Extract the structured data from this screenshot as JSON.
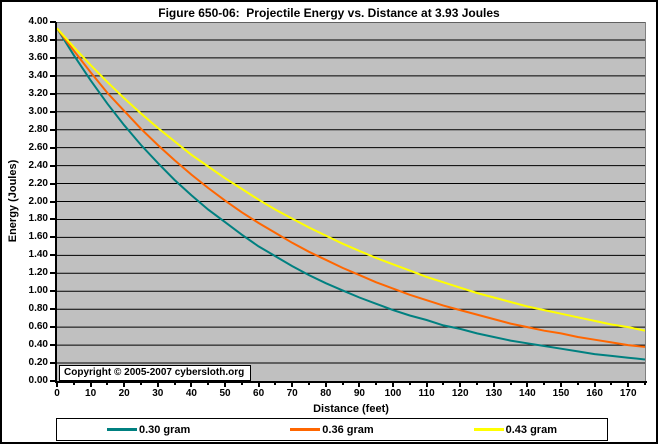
{
  "chart": {
    "title": "Figure 650-06:  Projectile Energy vs. Distance at 3.93 Joules",
    "copyright": "Copyright © 2005-2007 cybersloth.org",
    "plot_background": "#C0C0C0",
    "gridline_color": "#000000",
    "y_axis": {
      "label": "Energy (Joules)",
      "tick_labels": [
        "4.00",
        "3.80",
        "3.60",
        "3.40",
        "3.20",
        "3.00",
        "2.80",
        "2.60",
        "2.40",
        "2.20",
        "2.00",
        "1.80",
        "1.60",
        "1.40",
        "1.20",
        "1.00",
        "0.80",
        "0.60",
        "0.40",
        "0.20",
        "0.00"
      ],
      "tick_step": 0.2,
      "min": 0.0,
      "max": 4.0
    },
    "x_axis": {
      "label": "Distance (feet)",
      "tick_labels": [
        "0",
        "10",
        "20",
        "30",
        "40",
        "50",
        "60",
        "70",
        "80",
        "90",
        "100",
        "110",
        "120",
        "130",
        "140",
        "150",
        "160",
        "170"
      ],
      "major_tick_step": 10,
      "minor_tick_step": 5,
      "min": 0,
      "max": 175
    },
    "legend": [
      {
        "label": "0.30 gram",
        "color": "#008080"
      },
      {
        "label": "0.36 gram",
        "color": "#FF6600"
      },
      {
        "label": "0.43 gram",
        "color": "#FFFF00"
      }
    ]
  },
  "chart_data": {
    "type": "line",
    "title": "Figure 650-06:  Projectile Energy vs. Distance at 3.93 Joules",
    "xlabel": "Distance (feet)",
    "ylabel": "Energy (Joules)",
    "xlim": [
      0,
      175
    ],
    "ylim": [
      0.0,
      4.0
    ],
    "grid": "horizontal",
    "legend_position": "bottom",
    "x": [
      0,
      5,
      10,
      15,
      20,
      25,
      30,
      35,
      40,
      45,
      50,
      55,
      60,
      65,
      70,
      75,
      80,
      85,
      90,
      95,
      100,
      105,
      110,
      115,
      120,
      125,
      130,
      135,
      140,
      145,
      150,
      155,
      160,
      165,
      170,
      175
    ],
    "series": [
      {
        "name": "0.30 gram",
        "color": "#008080",
        "values": [
          3.93,
          3.63,
          3.35,
          3.09,
          2.85,
          2.63,
          2.43,
          2.24,
          2.07,
          1.91,
          1.77,
          1.63,
          1.5,
          1.39,
          1.28,
          1.18,
          1.09,
          1.01,
          0.93,
          0.86,
          0.79,
          0.73,
          0.68,
          0.62,
          0.58,
          0.53,
          0.49,
          0.45,
          0.42,
          0.39,
          0.36,
          0.33,
          0.3,
          0.28,
          0.26,
          0.24
        ]
      },
      {
        "name": "0.36 gram",
        "color": "#FF6600",
        "values": [
          3.93,
          3.68,
          3.44,
          3.21,
          3.01,
          2.81,
          2.63,
          2.46,
          2.3,
          2.15,
          2.01,
          1.88,
          1.76,
          1.65,
          1.54,
          1.44,
          1.35,
          1.26,
          1.18,
          1.1,
          1.03,
          0.96,
          0.9,
          0.84,
          0.79,
          0.74,
          0.69,
          0.64,
          0.6,
          0.56,
          0.53,
          0.49,
          0.46,
          0.43,
          0.4,
          0.38
        ]
      },
      {
        "name": "0.43 gram",
        "color": "#FFFF00",
        "values": [
          3.93,
          3.72,
          3.52,
          3.33,
          3.15,
          2.98,
          2.82,
          2.67,
          2.52,
          2.39,
          2.26,
          2.14,
          2.02,
          1.91,
          1.81,
          1.71,
          1.62,
          1.53,
          1.45,
          1.37,
          1.3,
          1.23,
          1.16,
          1.1,
          1.04,
          0.98,
          0.93,
          0.88,
          0.83,
          0.79,
          0.75,
          0.71,
          0.67,
          0.63,
          0.6,
          0.56
        ]
      }
    ]
  }
}
